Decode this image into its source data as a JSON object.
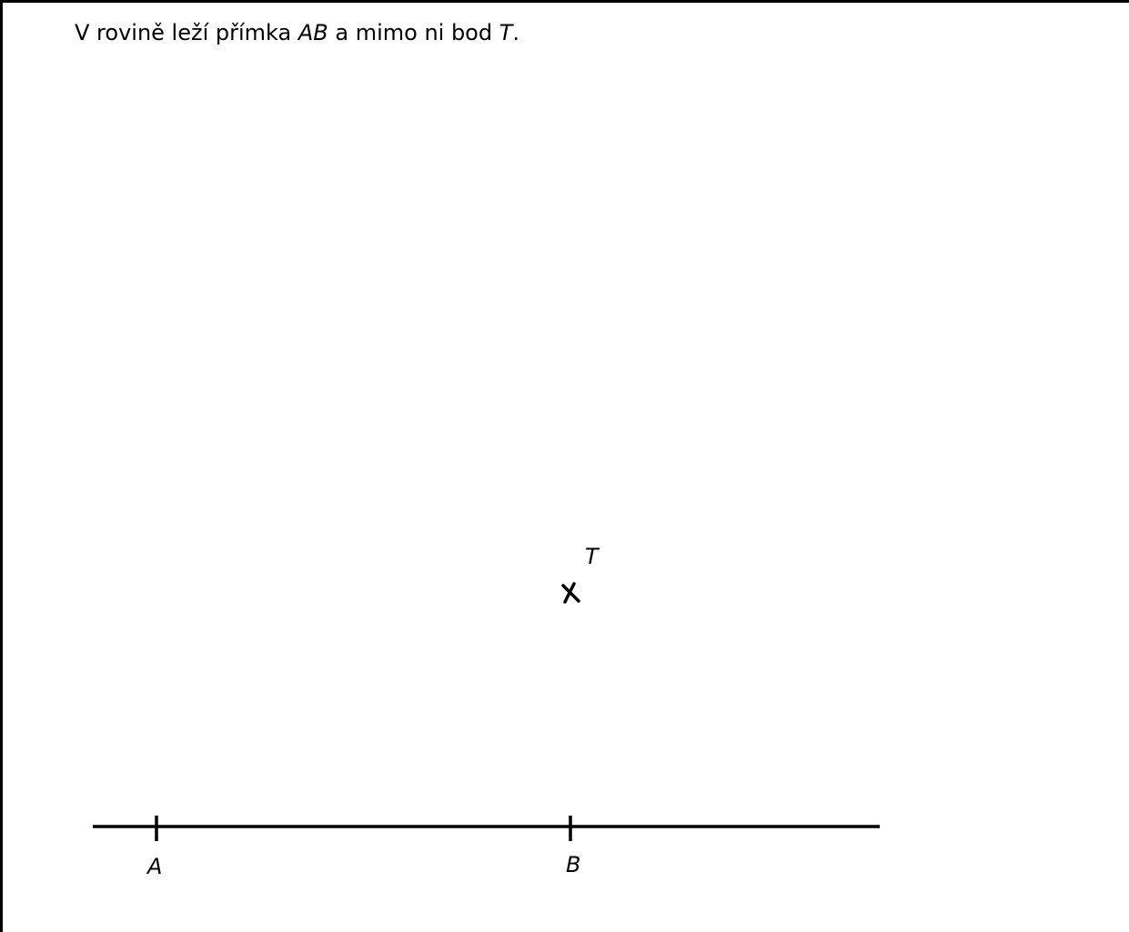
{
  "task": {
    "part1": "V rovině leží přímka ",
    "line_name": "AB",
    "part2": " a mimo ni bod ",
    "point_name": "T",
    "part3": "."
  },
  "figure": {
    "line": "AB",
    "points": {
      "A": "A",
      "B": "B",
      "T": "T"
    }
  }
}
